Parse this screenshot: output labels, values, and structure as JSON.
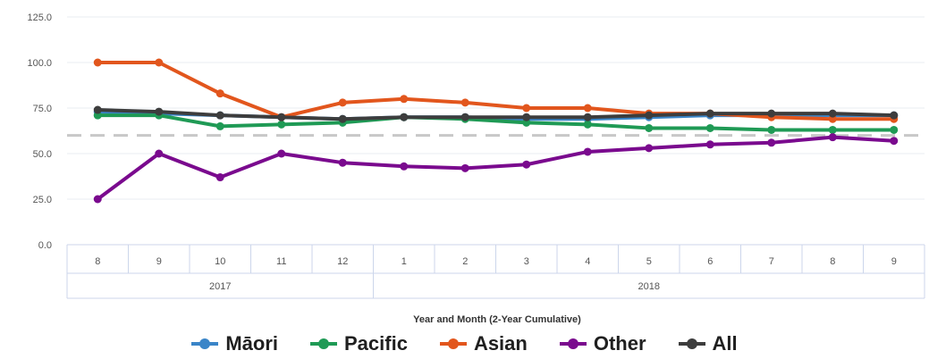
{
  "chart_data": {
    "type": "line",
    "y_ticks": [
      "125.0",
      "100.0",
      "75.0",
      "50.0",
      "25.0",
      "0.0"
    ],
    "ylim": [
      0,
      125
    ],
    "reference_line": 60,
    "categories": [
      "8",
      "9",
      "10",
      "11",
      "12",
      "1",
      "2",
      "3",
      "4",
      "5",
      "6",
      "7",
      "8",
      "9"
    ],
    "year_groups": [
      {
        "label": "2017",
        "span": 5
      },
      {
        "label": "2018",
        "span": 9
      }
    ],
    "xlabel": "Year and Month (2-Year Cumulative)",
    "grid": true,
    "legend_position": "bottom",
    "series": [
      {
        "name": "Māori",
        "color": "#3a85c8",
        "values": [
          73,
          72,
          71,
          70,
          69,
          70,
          70,
          69,
          69,
          70,
          71,
          71,
          71,
          71
        ]
      },
      {
        "name": "Pacific",
        "color": "#1f9a55",
        "values": [
          71,
          71,
          65,
          66,
          67,
          70,
          69,
          67,
          66,
          64,
          64,
          63,
          63,
          63
        ]
      },
      {
        "name": "Asian",
        "color": "#e2561d",
        "values": [
          100,
          100,
          83,
          70,
          78,
          80,
          78,
          75,
          75,
          72,
          72,
          70,
          69,
          69
        ]
      },
      {
        "name": "Other",
        "color": "#7a0a8e",
        "values": [
          25,
          50,
          37,
          50,
          45,
          43,
          42,
          44,
          51,
          53,
          55,
          56,
          59,
          57
        ]
      },
      {
        "name": "All",
        "color": "#3d3d3d",
        "values": [
          74,
          73,
          71,
          70,
          69,
          70,
          70,
          70,
          70,
          71,
          72,
          72,
          72,
          71
        ]
      }
    ]
  }
}
